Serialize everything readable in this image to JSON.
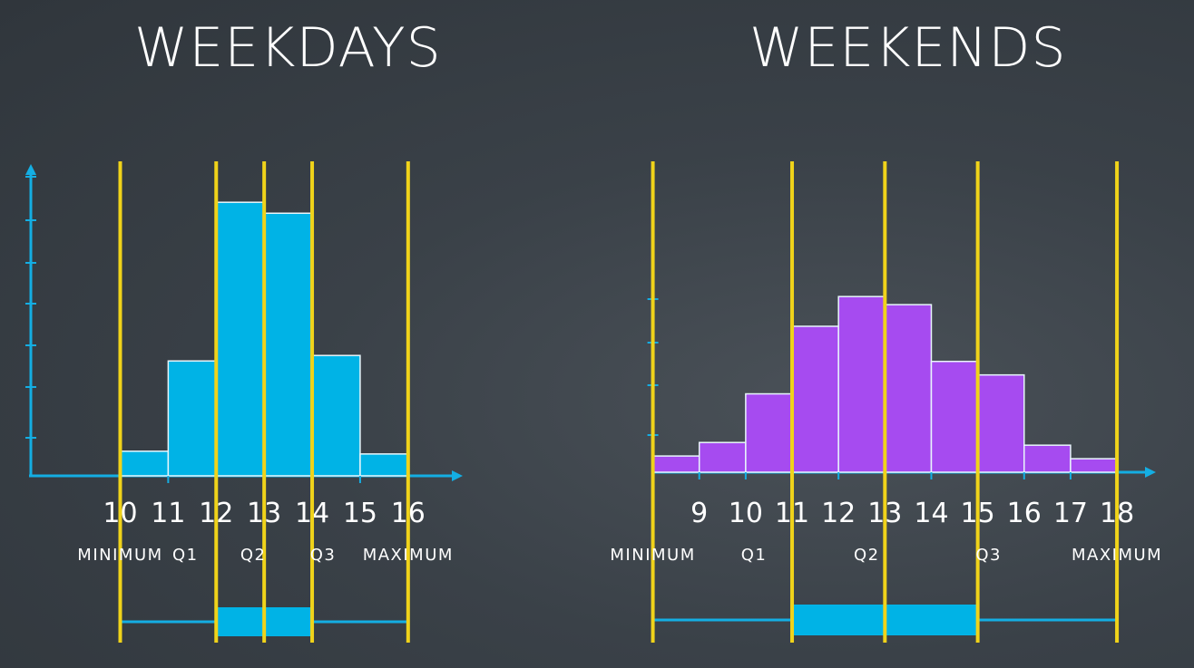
{
  "chart_data": [
    {
      "type": "bar",
      "title": "WEEKDAYS",
      "x": [
        10,
        11,
        12,
        13,
        14,
        15
      ],
      "bin_edges": [
        10,
        11,
        12,
        13,
        14,
        15,
        16
      ],
      "tick_labels": [
        "10",
        "11",
        "12",
        "13",
        "14",
        "15",
        "16"
      ],
      "values": [
        0.9,
        4.2,
        10,
        9.6,
        4.4,
        0.8
      ],
      "xlim": [
        8.1,
        17.1
      ],
      "ylim": [
        0,
        11
      ],
      "bar_color": "#00b3e6",
      "stats": {
        "minimum": 10,
        "q1": 12,
        "q2": 13,
        "q3": 14,
        "maximum": 16
      },
      "stat_labels": [
        "MINIMUM",
        "Q1",
        "Q2",
        "Q3",
        "MAXIMUM"
      ]
    },
    {
      "type": "bar",
      "title": "WEEKENDS",
      "x": [
        8,
        9,
        10,
        11,
        12,
        13,
        14,
        15,
        16,
        17
      ],
      "bin_edges": [
        8,
        9,
        10,
        11,
        12,
        13,
        14,
        15,
        16,
        17,
        18
      ],
      "tick_labels": [
        "9",
        "10",
        "11",
        "12",
        "13",
        "14",
        "15",
        "16",
        "17",
        "18"
      ],
      "values": [
        0.6,
        1.1,
        2.9,
        5.4,
        6.5,
        6.2,
        4.1,
        3.6,
        1.0,
        0.5
      ],
      "xlim": [
        7.5,
        18.8
      ],
      "ylim": [
        0,
        11
      ],
      "bar_color": "#a64bf0",
      "stats": {
        "minimum": 8,
        "q1": 11,
        "q2": 13,
        "q3": 15,
        "maximum": 18
      },
      "stat_labels": [
        "MINIMUM",
        "Q1",
        "Q2",
        "Q3",
        "MAXIMUM"
      ]
    }
  ],
  "colors": {
    "axis": "#14aee3",
    "quartile_line": "#f0d31a",
    "box": "#00b3e6",
    "text": "#ffffff"
  }
}
